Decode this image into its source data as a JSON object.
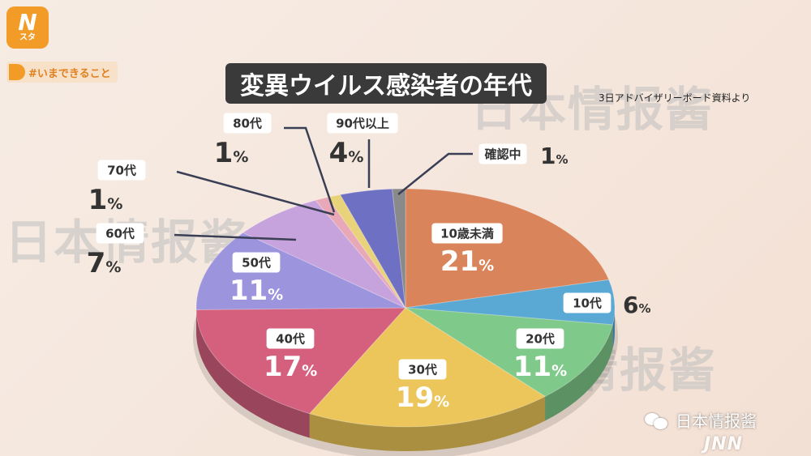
{
  "brand": {
    "logo_main": "N",
    "logo_sub": "スタ"
  },
  "tag": {
    "label": "#いまできること"
  },
  "header": {
    "title": "変異ウイルス感染者の年代",
    "source": "3日アドバイザリーボード資料より"
  },
  "watermark": {
    "text": "日本情报酱"
  },
  "footer": {
    "account": "日本情报酱",
    "network": "JNN"
  },
  "chart_data": {
    "type": "pie",
    "title": "変異ウイルス感染者の年代",
    "source": "3日アドバイザリーボード資料より",
    "unit": "%",
    "slices": [
      {
        "label": "10歳未満",
        "value": 21,
        "color": "#d9845a"
      },
      {
        "label": "10代",
        "value": 6,
        "color": "#5aa8d4"
      },
      {
        "label": "20代",
        "value": 11,
        "color": "#7fc98a"
      },
      {
        "label": "30代",
        "value": 19,
        "color": "#ecc65a"
      },
      {
        "label": "40代",
        "value": 17,
        "color": "#d4607e"
      },
      {
        "label": "50代",
        "value": 11,
        "color": "#9c94dd"
      },
      {
        "label": "60代",
        "value": 7,
        "color": "#c7a3dd"
      },
      {
        "label": "70代",
        "value": 1,
        "color": "#e8a8b8"
      },
      {
        "label": "80代",
        "value": 1,
        "color": "#e8d27a"
      },
      {
        "label": "90代以上",
        "value": 4,
        "color": "#6e70c4"
      },
      {
        "label": "確認中",
        "value": 1,
        "color": "#8a8a8a"
      }
    ]
  }
}
